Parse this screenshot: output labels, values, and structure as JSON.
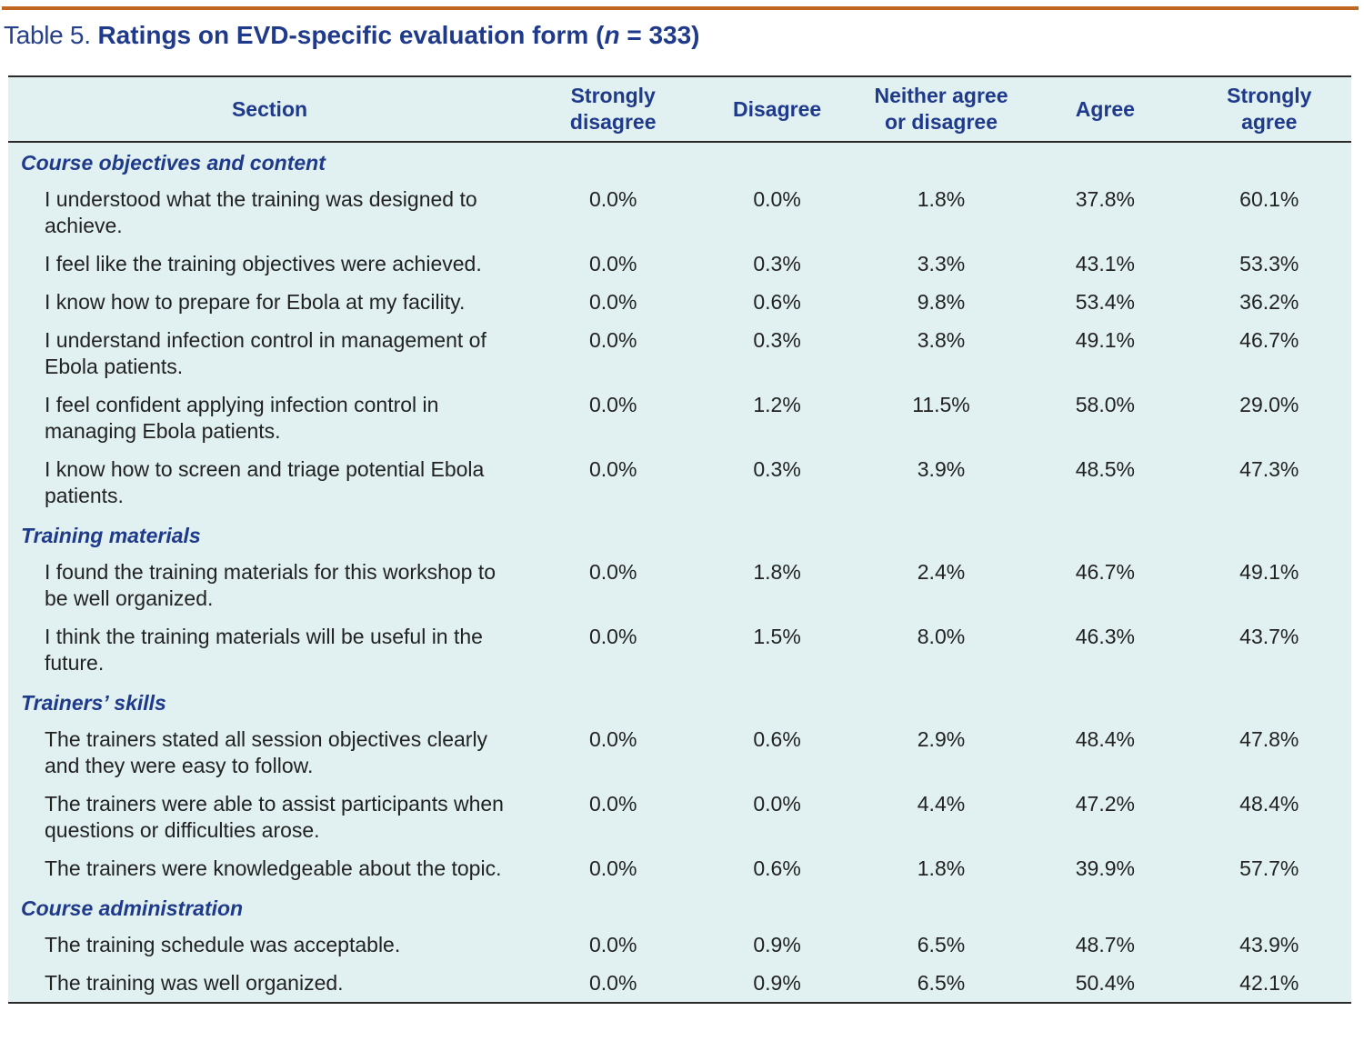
{
  "caption": {
    "label": "Table 5.",
    "title_prefix": "Ratings on EVD-specific evaluation form (",
    "n_symbol": "n",
    "title_suffix": " = 333)"
  },
  "table": {
    "columns": [
      {
        "line1": "Section",
        "line2": ""
      },
      {
        "line1": "Strongly",
        "line2": "disagree"
      },
      {
        "line1": "Disagree",
        "line2": ""
      },
      {
        "line1": "Neither agree",
        "line2": "or disagree"
      },
      {
        "line1": "Agree",
        "line2": ""
      },
      {
        "line1": "Strongly",
        "line2": "agree"
      }
    ],
    "sections": [
      {
        "title": "Course objectives and content",
        "rows": [
          {
            "item": "I understood what the training was designed to achieve.",
            "values": [
              "0.0%",
              "0.0%",
              "1.8%",
              "37.8%",
              "60.1%"
            ]
          },
          {
            "item": "I feel like the training objectives were achieved.",
            "values": [
              "0.0%",
              "0.3%",
              "3.3%",
              "43.1%",
              "53.3%"
            ]
          },
          {
            "item": "I know how to prepare for Ebola at my facility.",
            "values": [
              "0.0%",
              "0.6%",
              "9.8%",
              "53.4%",
              "36.2%"
            ]
          },
          {
            "item": "I understand infection control in management of Ebola patients.",
            "values": [
              "0.0%",
              "0.3%",
              "3.8%",
              "49.1%",
              "46.7%"
            ]
          },
          {
            "item": "I feel confident applying infection control in managing Ebola patients.",
            "values": [
              "0.0%",
              "1.2%",
              "11.5%",
              "58.0%",
              "29.0%"
            ]
          },
          {
            "item": "I know how to screen and triage potential Ebola patients.",
            "values": [
              "0.0%",
              "0.3%",
              "3.9%",
              "48.5%",
              "47.3%"
            ]
          }
        ]
      },
      {
        "title": "Training materials",
        "rows": [
          {
            "item": "I found the training materials for this workshop to be well organized.",
            "values": [
              "0.0%",
              "1.8%",
              "2.4%",
              "46.7%",
              "49.1%"
            ]
          },
          {
            "item": "I think the training materials will be useful in the future.",
            "values": [
              "0.0%",
              "1.5%",
              "8.0%",
              "46.3%",
              "43.7%"
            ]
          }
        ]
      },
      {
        "title": "Trainers’ skills",
        "rows": [
          {
            "item": "The trainers stated all session objectives clearly and they were easy to follow.",
            "values": [
              "0.0%",
              "0.6%",
              "2.9%",
              "48.4%",
              "47.8%"
            ]
          },
          {
            "item": "The trainers were able to assist participants when questions or difficulties arose.",
            "values": [
              "0.0%",
              "0.0%",
              "4.4%",
              "47.2%",
              "48.4%"
            ]
          },
          {
            "item": "The trainers were knowledgeable about the topic.",
            "values": [
              "0.0%",
              "0.6%",
              "1.8%",
              "39.9%",
              "57.7%"
            ]
          }
        ]
      },
      {
        "title": "Course administration",
        "rows": [
          {
            "item": "The training schedule was acceptable.",
            "values": [
              "0.0%",
              "0.9%",
              "6.5%",
              "48.7%",
              "43.9%"
            ]
          },
          {
            "item": "The training was well organized.",
            "values": [
              "0.0%",
              "0.9%",
              "6.5%",
              "50.4%",
              "42.1%"
            ]
          }
        ]
      }
    ]
  },
  "colors": {
    "accent_rule": "#c0661f",
    "heading_blue": "#1f3a8a",
    "table_background": "#e1f1f1",
    "body_text": "#222222"
  }
}
